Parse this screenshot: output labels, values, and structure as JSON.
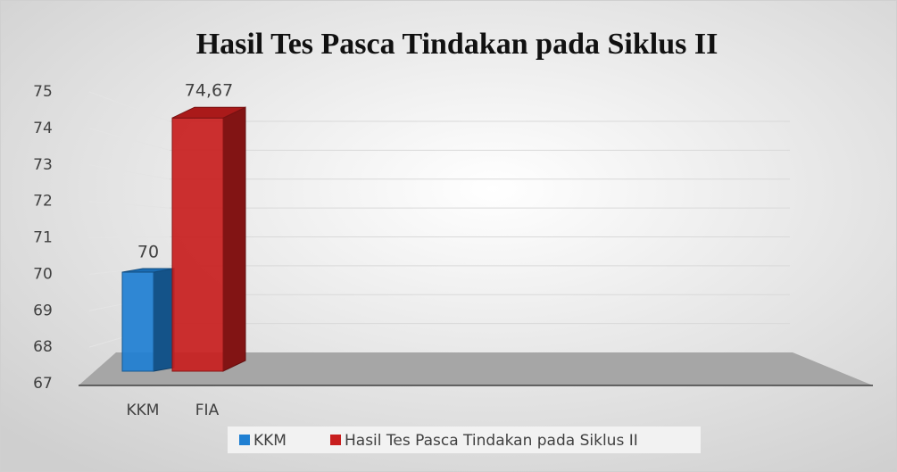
{
  "chart_data": {
    "type": "bar3d",
    "title": "Hasil Tes Pasca Tindakan pada Siklus II",
    "categories": [
      "KKM",
      "FIA"
    ],
    "values": [
      70,
      74.67
    ],
    "value_labels": [
      "70",
      "74,67"
    ],
    "colors": [
      "#1f7fd2",
      "#c81e1e"
    ],
    "legend": [
      "KKM",
      "Hasil Tes Pasca Tindakan pada Siklus II"
    ],
    "ylim": [
      67,
      75
    ],
    "yticks": [
      67,
      68,
      69,
      70,
      71,
      72,
      73,
      74,
      75
    ],
    "grid": true
  }
}
